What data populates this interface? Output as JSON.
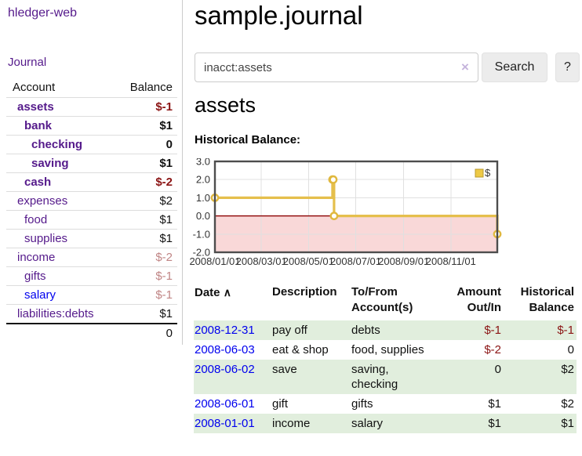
{
  "sidebar": {
    "app_title": "hledger-web",
    "nav_journal": "Journal",
    "col_account": "Account",
    "col_balance": "Balance",
    "accounts": [
      {
        "name": "assets",
        "indent": 0,
        "bold": true,
        "blue": false,
        "balance": "$-1"
      },
      {
        "name": "bank",
        "indent": 1,
        "bold": true,
        "blue": false,
        "balance": "$1"
      },
      {
        "name": "checking",
        "indent": 2,
        "bold": true,
        "blue": false,
        "balance": "0"
      },
      {
        "name": "saving",
        "indent": 2,
        "bold": true,
        "blue": false,
        "balance": "$1"
      },
      {
        "name": "cash",
        "indent": 1,
        "bold": true,
        "blue": false,
        "balance": "$-2"
      },
      {
        "name": "expenses",
        "indent": 0,
        "bold": false,
        "blue": false,
        "balance": "$2"
      },
      {
        "name": "food",
        "indent": 1,
        "bold": false,
        "blue": false,
        "balance": "$1"
      },
      {
        "name": "supplies",
        "indent": 1,
        "bold": false,
        "blue": false,
        "balance": "$1"
      },
      {
        "name": "income",
        "indent": 0,
        "bold": false,
        "blue": false,
        "balance": "$-2"
      },
      {
        "name": "gifts",
        "indent": 1,
        "bold": false,
        "blue": false,
        "balance": "$-1"
      },
      {
        "name": "salary",
        "indent": 1,
        "bold": false,
        "blue": true,
        "balance": "$-1"
      },
      {
        "name": "liabilities:debts",
        "indent": 0,
        "bold": false,
        "blue": false,
        "balance": "$1"
      }
    ],
    "total": "0"
  },
  "main": {
    "title": "sample.journal",
    "search": {
      "value": "inacct:assets",
      "clear_icon": "×",
      "button_label": "Search",
      "help_label": "?"
    },
    "account_heading": "assets",
    "chart_label": "Historical Balance:",
    "register": {
      "headers": [
        "Date",
        "Description",
        "To/From Account(s)",
        "Amount Out/In",
        "Historical Balance"
      ],
      "sort_indicator": "∧",
      "rows": [
        {
          "date": "2008-12-31",
          "description": "pay off",
          "accounts": "debts",
          "amount": "$-1",
          "balance": "$-1"
        },
        {
          "date": "2008-06-03",
          "description": "eat & shop",
          "accounts": "food, supplies",
          "amount": "$-2",
          "balance": "0"
        },
        {
          "date": "2008-06-02",
          "description": "save",
          "accounts": "saving, checking",
          "amount": "0",
          "balance": "$2"
        },
        {
          "date": "2008-06-01",
          "description": "gift",
          "accounts": "gifts",
          "amount": "$1",
          "balance": "$2"
        },
        {
          "date": "2008-01-01",
          "description": "income",
          "accounts": "salary",
          "amount": "$1",
          "balance": "$1"
        }
      ]
    }
  },
  "chart_data": {
    "type": "line",
    "step": "step-after",
    "title": "Historical Balance",
    "series": [
      {
        "name": "$",
        "points": [
          {
            "date": "2008-01-01",
            "value": 1
          },
          {
            "date": "2008-06-01",
            "value": 2
          },
          {
            "date": "2008-06-02",
            "value": 2
          },
          {
            "date": "2008-06-03",
            "value": 0
          },
          {
            "date": "2008-12-31",
            "value": -1
          }
        ]
      }
    ],
    "x_domain": [
      "2008-01-01",
      "2008-12-31"
    ],
    "ylim": [
      -2,
      3
    ],
    "y_ticks": [
      3.0,
      2.0,
      1.0,
      0.0,
      -1.0,
      -2.0
    ],
    "x_ticks": [
      {
        "label": "2008/01/01",
        "date": "2008-01-01"
      },
      {
        "label": "2008/03/01",
        "date": "2008-03-01"
      },
      {
        "label": "2008/05/01",
        "date": "2008-05-01"
      },
      {
        "label": "2008/07/01",
        "date": "2008-07-01"
      },
      {
        "label": "2008/09/01",
        "date": "2008-09-01"
      },
      {
        "label": "2008/11/01",
        "date": "2008-11-01"
      }
    ],
    "legend": {
      "position": "top-right",
      "entries": [
        "$"
      ]
    },
    "grid": true,
    "negative_region_shaded": true
  },
  "colors": {
    "link_purple": "#551a8b",
    "link_blue": "#0000ee",
    "negative_dark_red": "#8b1414",
    "negative_light_red": "#c08585",
    "row_stripe_green": "#e1eedd",
    "chart_line_gold": "#e5bf4c",
    "chart_negative_fill_pink": "#f9d8d8",
    "chart_zero_line_dark_red": "#8b0000",
    "chart_border_gray": "#4d4d4d",
    "button_gray": "#ececec"
  }
}
